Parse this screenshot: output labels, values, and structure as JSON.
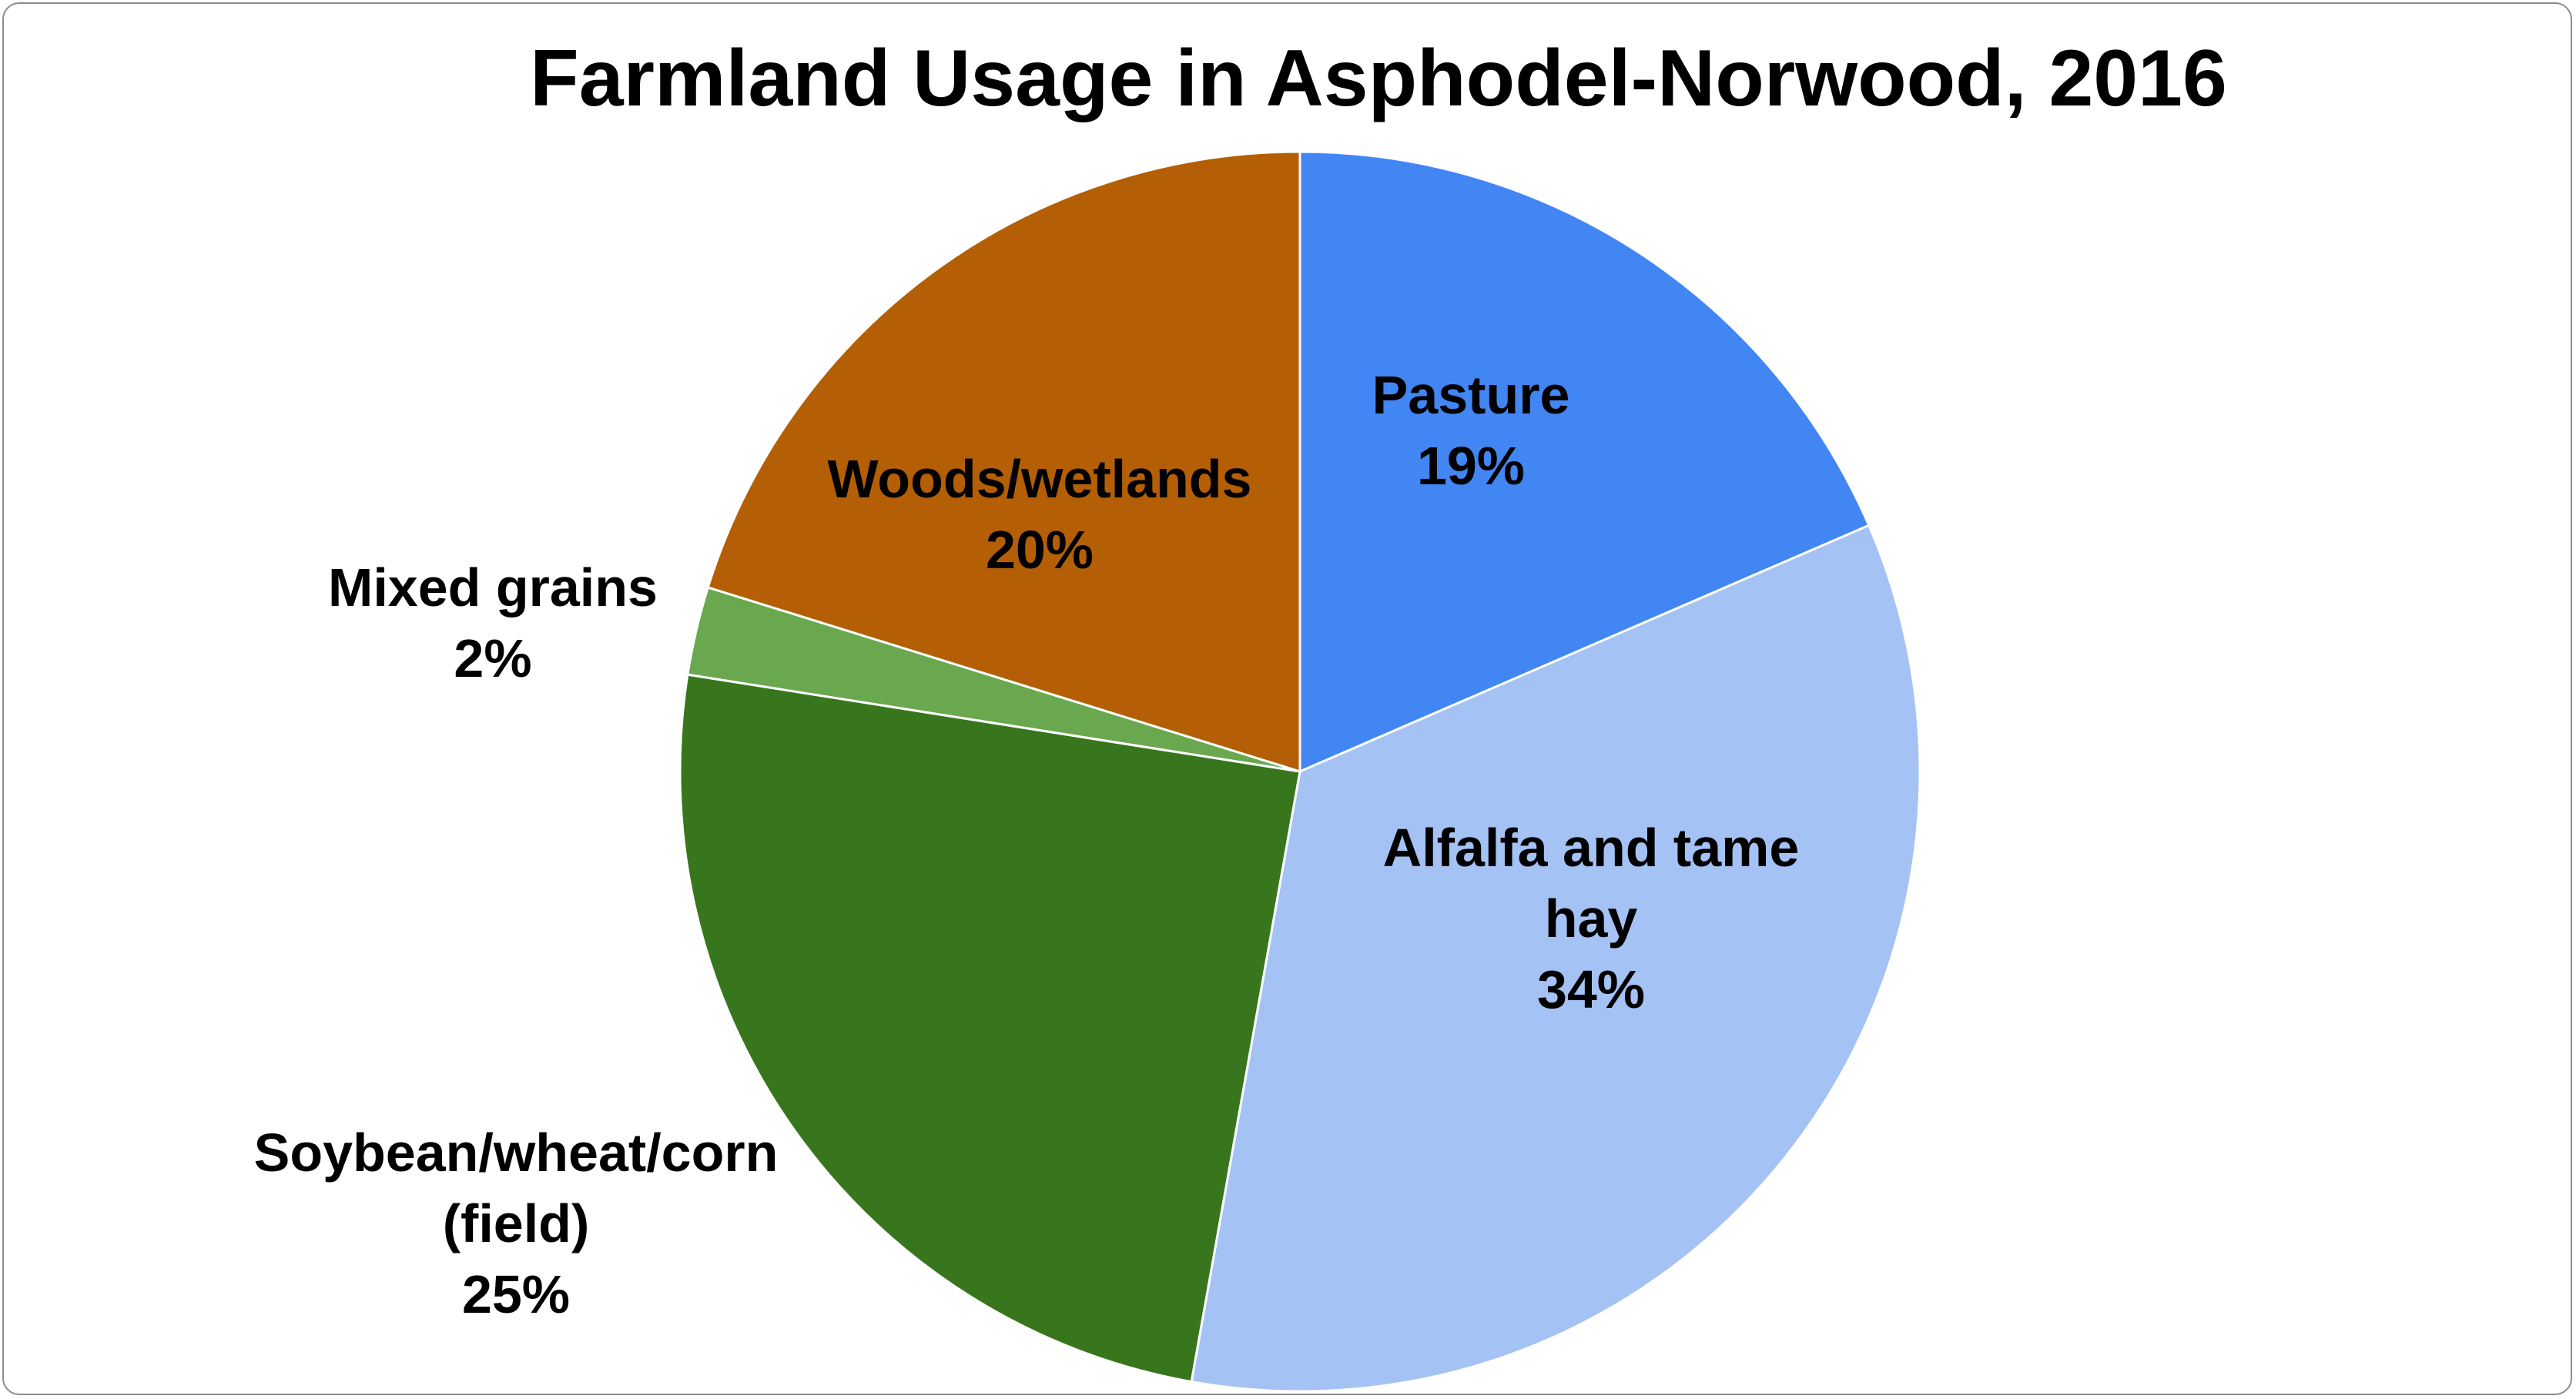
{
  "chart_data": {
    "type": "pie",
    "title": "Farmland Usage in Asphodel-Norwood, 2016",
    "start_angle_deg": 0,
    "direction": "clockwise",
    "slices": [
      {
        "name": "Pasture",
        "label_lines": [
          "Pasture",
          "19%"
        ],
        "percent_label": "19%",
        "value": 18.5,
        "color": "#4286f4"
      },
      {
        "name": "Alfalfa and tame hay",
        "label_lines": [
          "Alfalfa and tame",
          "hay",
          "34%"
        ],
        "percent_label": "34%",
        "value": 34.3,
        "color": "#a4c2f4"
      },
      {
        "name": "Soybean/wheat/corn (field)",
        "label_lines": [
          "Soybean/wheat/corn",
          "(field)",
          "25%"
        ],
        "percent_label": "25%",
        "value": 24.7,
        "color": "#38761d"
      },
      {
        "name": "Mixed grains",
        "label_lines": [
          "Mixed grains",
          "2%"
        ],
        "percent_label": "2%",
        "value": 2.3,
        "color": "#6aa84f"
      },
      {
        "name": "Woods/wetlands",
        "label_lines": [
          "Woods/wetlands",
          "20%"
        ],
        "percent_label": "20%",
        "value": 20.2,
        "color": "#b45f06"
      }
    ]
  }
}
